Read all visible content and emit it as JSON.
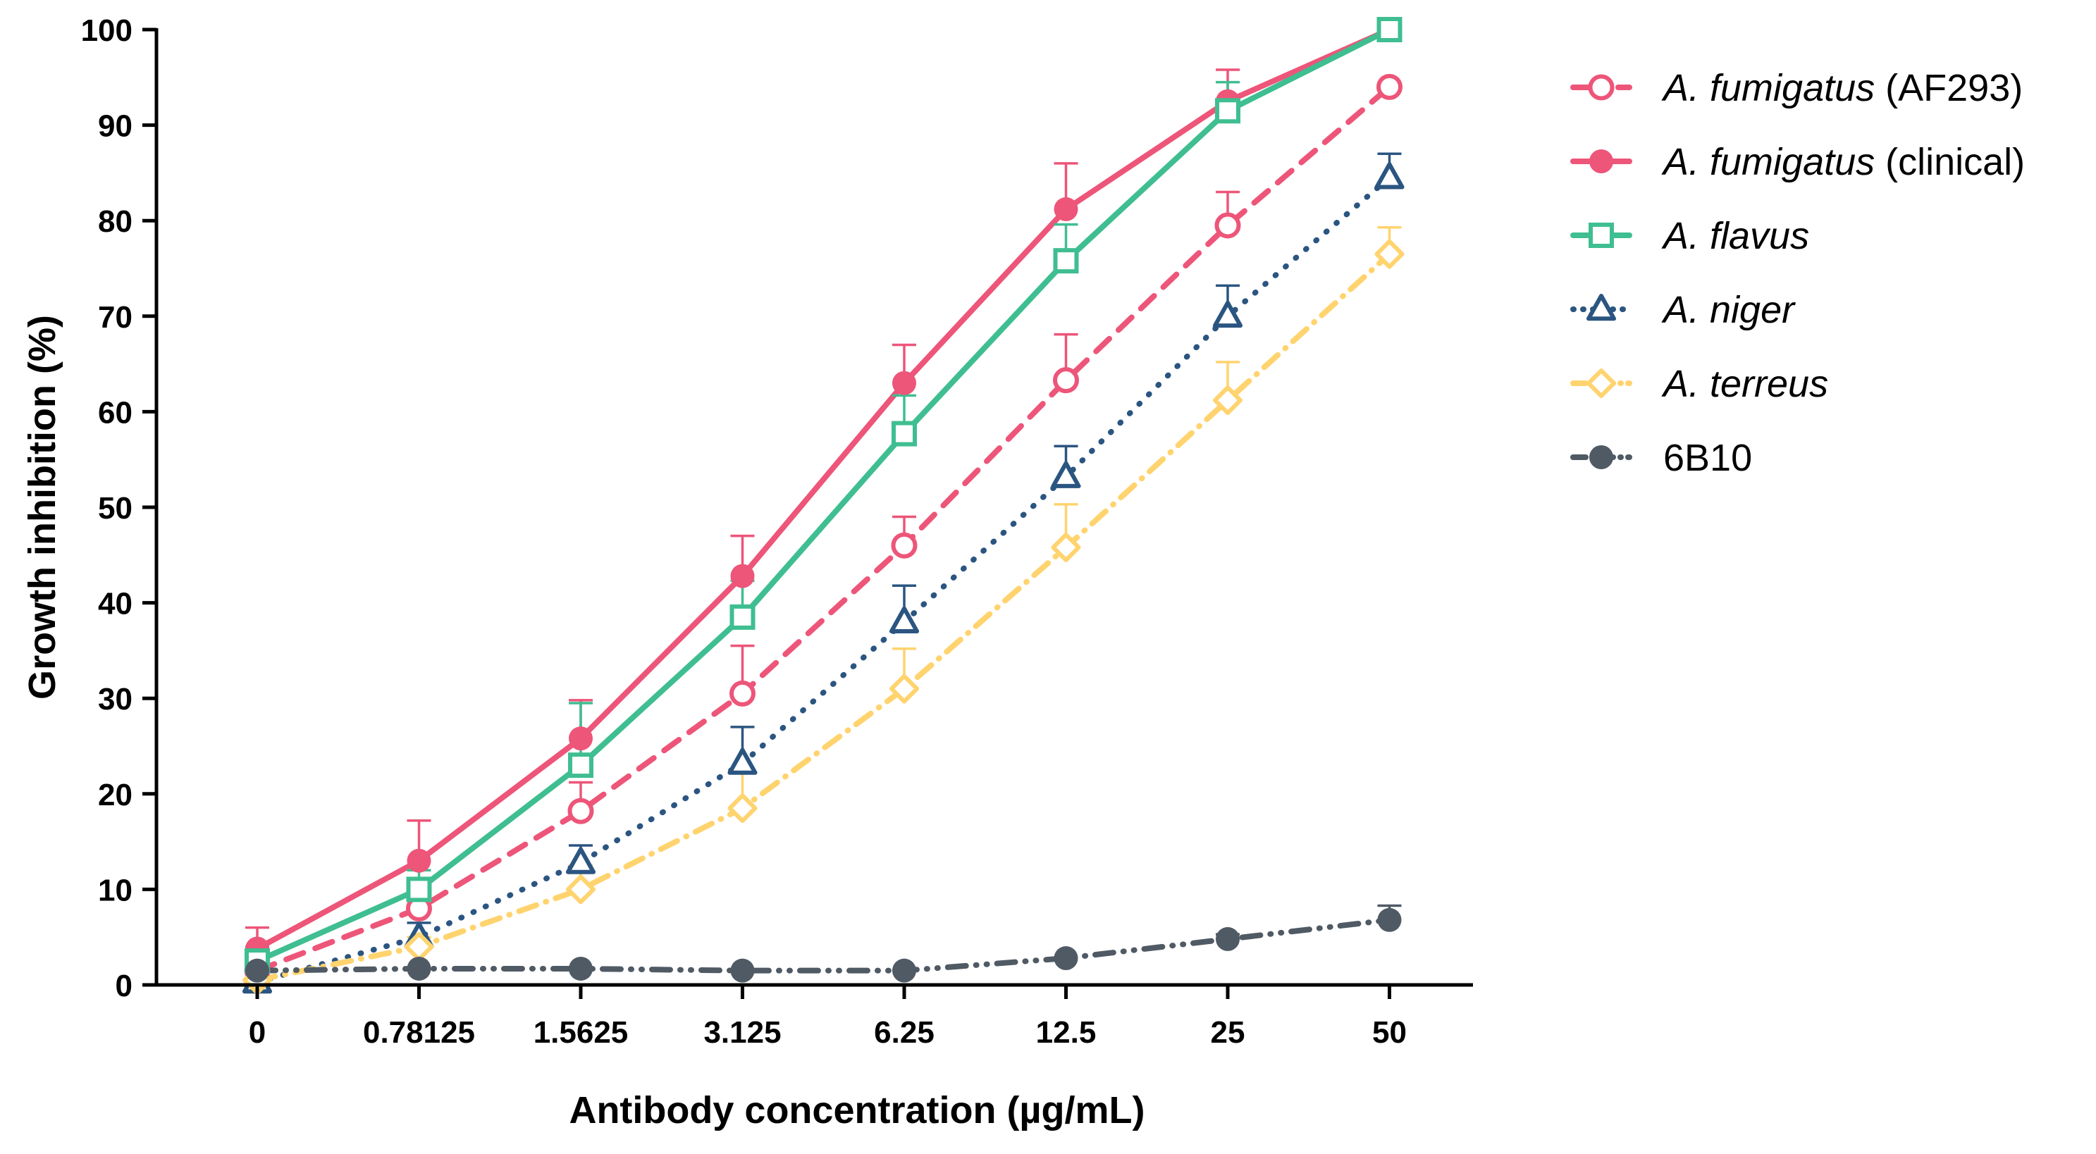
{
  "chart_data": {
    "type": "line",
    "title": "",
    "xlabel": "Antibody concentration (µg/mL)",
    "ylabel": "Growth inhibition (%)",
    "categories": [
      "0",
      "0.78125",
      "1.5625",
      "3.125",
      "6.25",
      "12.5",
      "25",
      "50"
    ],
    "ylim": [
      0,
      100
    ],
    "yticks": [
      0,
      10,
      20,
      30,
      40,
      50,
      60,
      70,
      80,
      90,
      100
    ],
    "legend_position": "right",
    "series": [
      {
        "name": "A. fumigatus (AF293)",
        "legend_italic": "A. fumigatus",
        "legend_suffix": " (AF293)",
        "color": "#ED5579",
        "marker": "circle-open",
        "line": "dashed",
        "values": [
          1.5,
          8,
          18.2,
          30.5,
          46,
          63.3,
          79.5,
          94
        ],
        "errors": [
          1.5,
          2.5,
          3,
          5,
          3,
          4.8,
          3.5,
          0
        ]
      },
      {
        "name": "A. fumigatus (clinical)",
        "legend_italic": "A. fumigatus",
        "legend_suffix": " (clinical)",
        "color": "#ED5579",
        "marker": "circle-filled",
        "line": "solid",
        "values": [
          3.8,
          13,
          25.8,
          42.8,
          63,
          81.2,
          92.5,
          100
        ],
        "errors": [
          2.2,
          4.2,
          4,
          4.2,
          4,
          4.8,
          3.3,
          0
        ]
      },
      {
        "name": "A. flavus",
        "legend_italic": "A. flavus",
        "legend_suffix": "",
        "color": "#3FBE91",
        "marker": "square-open",
        "line": "solid",
        "values": [
          2.5,
          10,
          23,
          38.5,
          57.7,
          75.8,
          91.5,
          100
        ],
        "errors": [
          1.5,
          2,
          6.5,
          3.8,
          4,
          3.8,
          3,
          0
        ]
      },
      {
        "name": "A. niger",
        "legend_italic": "A. niger",
        "legend_suffix": "",
        "color": "#2B5581",
        "marker": "triangle-open",
        "line": "dotted",
        "values": [
          0.3,
          5,
          12.8,
          23.2,
          38,
          53.2,
          70,
          84.5
        ],
        "errors": [
          0.5,
          1.5,
          1.8,
          3.8,
          3.8,
          3.2,
          3.2,
          2.5
        ]
      },
      {
        "name": "A. terreus",
        "legend_italic": "A. terreus",
        "legend_suffix": "",
        "color": "#FFD36E",
        "marker": "diamond-open",
        "line": "dashdot",
        "values": [
          0.5,
          4,
          10,
          18.5,
          31,
          45.8,
          61.2,
          76.5
        ],
        "errors": [
          0.5,
          1,
          2.5,
          3.8,
          4.2,
          4.5,
          4,
          2.8
        ]
      },
      {
        "name": "6B10",
        "legend_italic": "",
        "legend_suffix": "6B10",
        "color": "#4F5A64",
        "marker": "circle-filled",
        "line": "dashdotdot",
        "values": [
          1.5,
          1.7,
          1.7,
          1.5,
          1.5,
          2.8,
          4.8,
          6.8
        ],
        "errors": [
          0,
          0,
          0,
          0,
          0,
          0,
          0.5,
          1.5
        ]
      }
    ]
  }
}
